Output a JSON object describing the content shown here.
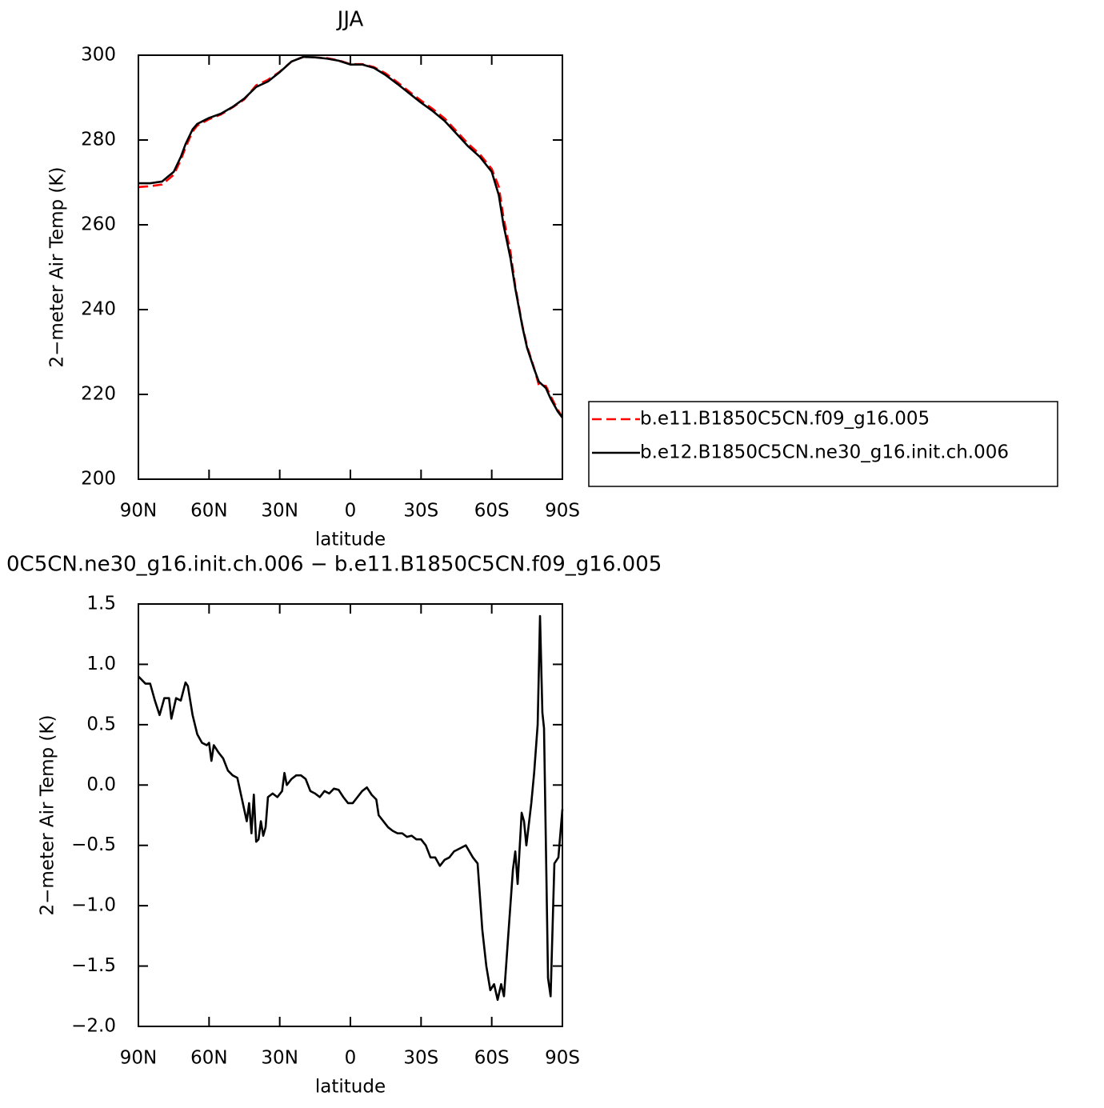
{
  "chart_data": [
    {
      "type": "line",
      "title": "JJA",
      "xlabel": "latitude",
      "ylabel": "2−meter Air Temp (K)",
      "xlim": [
        90,
        -90
      ],
      "xticks": [
        {
          "value": 90,
          "label": "90N"
        },
        {
          "value": 60,
          "label": "60N"
        },
        {
          "value": 30,
          "label": "30N"
        },
        0,
        {
          "value": -30,
          "label": "30S"
        },
        {
          "value": -60,
          "label": "60S"
        },
        {
          "value": -90,
          "label": "90S"
        }
      ],
      "ylim": [
        200,
        300
      ],
      "yticks": [
        200,
        220,
        240,
        260,
        280,
        300
      ],
      "legend": "right",
      "x": [
        90,
        85,
        80,
        75,
        72,
        70,
        67,
        65,
        60,
        55,
        50,
        45,
        40,
        35,
        30,
        25,
        20,
        15,
        10,
        5,
        0,
        -5,
        -10,
        -15,
        -20,
        -25,
        -30,
        -35,
        -40,
        -45,
        -50,
        -55,
        -60,
        -63,
        -65,
        -68,
        -70,
        -73,
        -75,
        -78,
        -80,
        -83,
        -85,
        -88,
        -90
      ],
      "series": [
        {
          "name": "b.e11.B1850C5CN.f09_g16.005",
          "color": "#ff0000",
          "dash": true,
          "values": [
            268.9,
            269.1,
            269.5,
            271.8,
            275.3,
            278.2,
            282,
            283.4,
            284.9,
            286,
            287.7,
            289.6,
            292.9,
            294.2,
            296.1,
            298.5,
            299.6,
            299.5,
            299.3,
            298.8,
            297.9,
            297.9,
            297.2,
            295.7,
            293.6,
            291.4,
            289.3,
            287.3,
            285.1,
            282.1,
            279.1,
            276.6,
            273.2,
            269,
            261.7,
            253.5,
            245.5,
            236.3,
            231.4,
            226.2,
            222.2,
            222,
            219.6,
            216.4,
            214.7
          ]
        },
        {
          "name": "b.e12.B1850C5CN.ne30_g16.init.ch.006",
          "color": "#000000",
          "dash": false,
          "values": [
            269.8,
            269.8,
            270.2,
            272.5,
            276,
            279,
            282.5,
            283.8,
            285.2,
            286.2,
            287.8,
            289.8,
            292.5,
            293.8,
            296,
            298.5,
            299.6,
            299.5,
            299.2,
            298.7,
            297.8,
            297.8,
            297,
            295.3,
            293.2,
            291,
            288.8,
            286.8,
            284.5,
            281.5,
            278.5,
            276,
            272.5,
            267,
            260,
            252,
            245,
            236,
            231,
            226,
            223,
            221.5,
            219,
            216,
            214.5
          ]
        }
      ]
    },
    {
      "type": "line",
      "title": "0C5CN.ne30_g16.init.ch.006 − b.e11.B1850C5CN.f09_g16.005",
      "xlabel": "latitude",
      "ylabel": "2−meter Air Temp (K)",
      "xlim": [
        90,
        -90
      ],
      "xticks": [
        {
          "value": 90,
          "label": "90N"
        },
        {
          "value": 60,
          "label": "60N"
        },
        {
          "value": 30,
          "label": "30N"
        },
        0,
        {
          "value": -30,
          "label": "30S"
        },
        {
          "value": -60,
          "label": "60S"
        },
        {
          "value": -90,
          "label": "90S"
        }
      ],
      "ylim": [
        -2.0,
        1.5
      ],
      "yticks": [
        {
          "value": -2.0,
          "label": "−2.0"
        },
        {
          "value": -1.5,
          "label": "−1.5"
        },
        {
          "value": -1.0,
          "label": "−1.0"
        },
        {
          "value": -0.5,
          "label": "−0.5"
        },
        {
          "value": 0,
          "label": "0.0"
        },
        0.5,
        {
          "value": 1,
          "label": "1.0"
        },
        1.5
      ],
      "x": [
        90,
        87,
        85,
        83,
        81,
        79,
        77,
        76,
        74,
        72,
        70,
        69,
        67,
        65,
        63,
        61,
        60,
        59,
        58,
        56,
        54,
        52,
        50,
        48,
        46,
        44,
        43,
        42,
        41,
        40,
        39,
        38,
        37,
        36,
        35,
        33,
        31,
        29,
        28,
        27,
        25,
        23,
        21,
        19,
        17,
        15,
        13,
        11,
        9,
        7,
        5,
        3,
        1,
        -1,
        -3,
        -5,
        -7,
        -9,
        -11,
        -12,
        -14,
        -16,
        -18,
        -20,
        -22,
        -24,
        -26,
        -28,
        -30,
        -32,
        -34,
        -36,
        -38,
        -40,
        -42,
        -44,
        -46,
        -49,
        -52,
        -54,
        -56,
        -57.7,
        -59.4,
        -61,
        -62.5,
        -64,
        -65.2,
        -67,
        -69,
        -70,
        -71,
        -72.7,
        -73.7,
        -74.7,
        -76.8,
        -78,
        -79.5,
        -80.5,
        -81.5,
        -82.2,
        -83.9,
        -85,
        -86.6,
        -88.3,
        -90
      ],
      "series": [
        {
          "color": "#000000",
          "dash": false,
          "values": [
            0.9,
            0.84,
            0.84,
            0.7,
            0.58,
            0.72,
            0.72,
            0.55,
            0.72,
            0.7,
            0.85,
            0.82,
            0.58,
            0.42,
            0.35,
            0.33,
            0.35,
            0.2,
            0.33,
            0.27,
            0.22,
            0.12,
            0.08,
            0.06,
            -0.12,
            -0.3,
            -0.15,
            -0.4,
            -0.08,
            -0.47,
            -0.45,
            -0.3,
            -0.42,
            -0.35,
            -0.1,
            -0.07,
            -0.1,
            -0.05,
            0.1,
            0,
            0.05,
            0.08,
            0.08,
            0.05,
            -0.05,
            -0.07,
            -0.1,
            -0.05,
            -0.07,
            -0.03,
            -0.04,
            -0.1,
            -0.15,
            -0.15,
            -0.1,
            -0.05,
            -0.02,
            -0.08,
            -0.12,
            -0.25,
            -0.3,
            -0.35,
            -0.38,
            -0.4,
            -0.4,
            -0.43,
            -0.42,
            -0.45,
            -0.45,
            -0.5,
            -0.6,
            -0.6,
            -0.67,
            -0.62,
            -0.6,
            -0.55,
            -0.53,
            -0.5,
            -0.6,
            -0.65,
            -1.2,
            -1.5,
            -1.7,
            -1.65,
            -1.78,
            -1.65,
            -1.75,
            -1.25,
            -0.7,
            -0.55,
            -0.82,
            -0.23,
            -0.3,
            -0.5,
            -0.15,
            0.1,
            0.5,
            1.4,
            0.6,
            0.47,
            -1.6,
            -1.75,
            -0.65,
            -0.6,
            -0.2
          ]
        }
      ]
    }
  ]
}
